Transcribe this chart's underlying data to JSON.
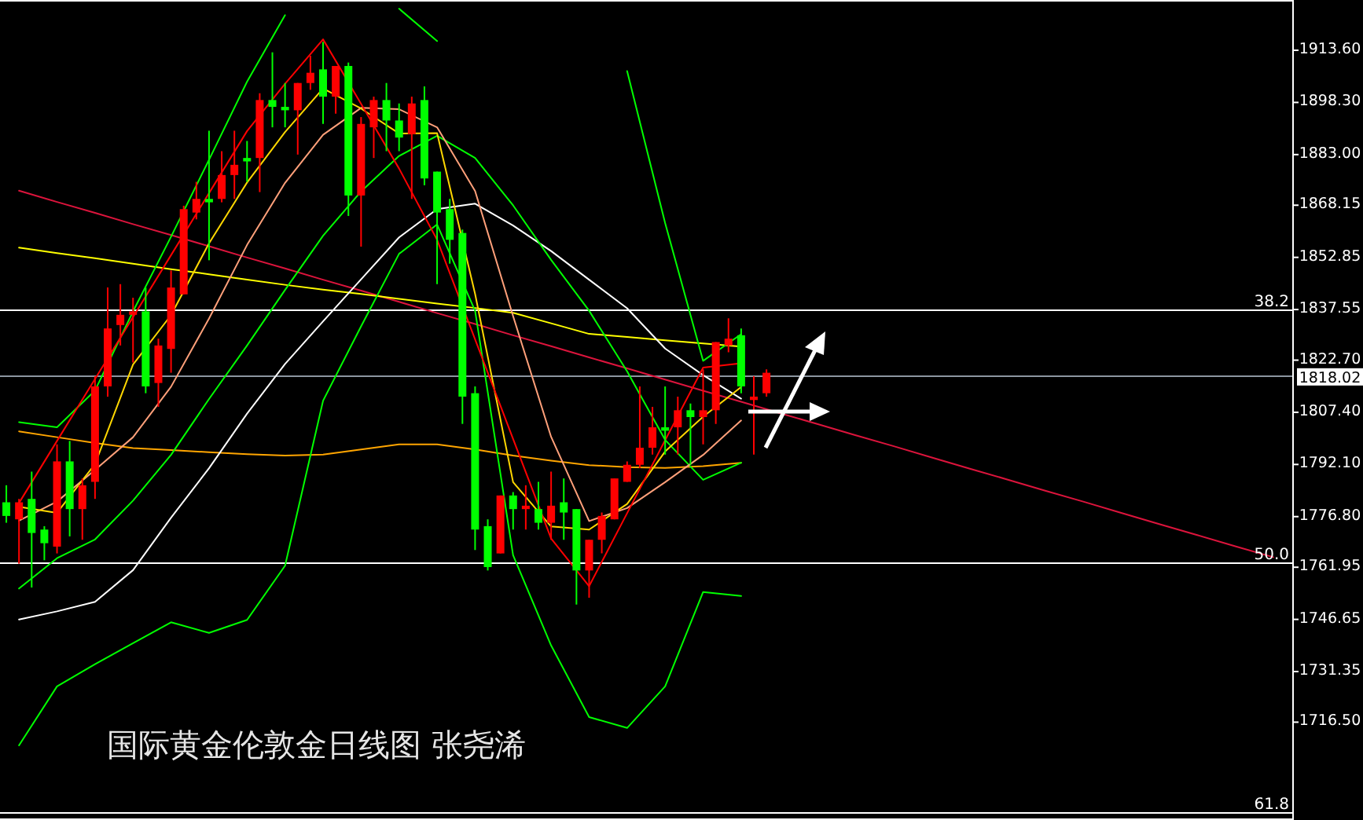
{
  "chart_data": [
    {
      "type": "candlestick",
      "title": "国际黄金伦敦金日线图 张尧浠",
      "categories": [
        null,
        null,
        null,
        null,
        null,
        null,
        null,
        null,
        null,
        null,
        null,
        null,
        null,
        null,
        null,
        null,
        null,
        null,
        null,
        null,
        null,
        null,
        null,
        null,
        null,
        null,
        null,
        null,
        null,
        null,
        null,
        null,
        null,
        null,
        null,
        null,
        null,
        null,
        null,
        null,
        null,
        null,
        null,
        null,
        null,
        null,
        null,
        null,
        null,
        null,
        null,
        null,
        null,
        null,
        null,
        null,
        null,
        null,
        null,
        null,
        null
      ],
      "ohlc": [
        [
          1781,
          1786,
          1775,
          1777
        ],
        [
          1776,
          1782,
          1763,
          1781
        ],
        [
          1782,
          1790,
          1756,
          1772
        ],
        [
          1773,
          1774,
          1764,
          1769
        ],
        [
          1768,
          1798,
          1766,
          1793
        ],
        [
          1793,
          1799,
          1771,
          1779
        ],
        [
          1779,
          1788,
          1770,
          1786
        ],
        [
          1787,
          1818,
          1782,
          1815
        ],
        [
          1815,
          1844,
          1812,
          1832
        ],
        [
          1833,
          1845,
          1827,
          1836
        ],
        [
          1836,
          1841,
          1822,
          1837
        ],
        [
          1837,
          1844,
          1813,
          1815
        ],
        [
          1816,
          1829,
          1809,
          1827
        ],
        [
          1826,
          1849,
          1819,
          1844
        ],
        [
          1842,
          1868,
          1842,
          1867
        ],
        [
          1866,
          1875,
          1864,
          1870
        ],
        [
          1870,
          1890,
          1852,
          1869
        ],
        [
          1870,
          1884,
          1869,
          1877
        ],
        [
          1877,
          1890,
          1870,
          1880
        ],
        [
          1882,
          1887,
          1875,
          1881
        ],
        [
          1882,
          1901,
          1872,
          1899
        ],
        [
          1899,
          1913,
          1891,
          1897
        ],
        [
          1897,
          1904,
          1891,
          1896
        ],
        [
          1896,
          1904,
          1883,
          1904
        ],
        [
          1904,
          1912,
          1902,
          1907
        ],
        [
          1908,
          1916,
          1892,
          1900
        ],
        [
          1900,
          1909,
          1895,
          1909
        ],
        [
          1909,
          1910,
          1865,
          1871
        ],
        [
          1871,
          1894,
          1856,
          1892
        ],
        [
          1891,
          1900,
          1882,
          1899
        ],
        [
          1899,
          1904,
          1884,
          1893
        ],
        [
          1893,
          1898,
          1884,
          1888
        ],
        [
          1889,
          1900,
          1870,
          1898
        ],
        [
          1899,
          1903,
          1874,
          1876
        ],
        [
          1878,
          1878,
          1845,
          1866
        ],
        [
          1867,
          1870,
          1851,
          1858
        ],
        [
          1860,
          1861,
          1804,
          1812
        ],
        [
          1813,
          1815,
          1767,
          1773
        ],
        [
          1774,
          1776,
          1761,
          1762
        ],
        [
          1766,
          1783,
          1766,
          1783
        ],
        [
          1783,
          1784,
          1773,
          1779
        ],
        [
          1779,
          1786,
          1773,
          1780
        ],
        [
          1779,
          1787,
          1773,
          1775
        ],
        [
          1775,
          1790,
          1770,
          1780
        ],
        [
          1781,
          1788,
          1770,
          1778
        ],
        [
          1779,
          1779,
          1751,
          1761
        ],
        [
          1761,
          1770,
          1753,
          1770
        ],
        [
          1770,
          1778,
          1766,
          1777
        ],
        [
          1776,
          1788,
          1776,
          1788
        ],
        [
          1787,
          1793,
          1787,
          1792
        ],
        [
          1792,
          1815,
          1791,
          1797
        ],
        [
          1797,
          1809,
          1795,
          1803
        ],
        [
          1803,
          1815,
          1795,
          1802
        ],
        [
          1803,
          1812,
          1795,
          1808
        ],
        [
          1808,
          1810,
          1792,
          1806
        ],
        [
          1806,
          1820,
          1798,
          1808
        ],
        [
          1808,
          1828,
          1804,
          1828
        ],
        [
          1827,
          1835,
          1825,
          1829
        ],
        [
          1830,
          1832,
          1813,
          1815
        ],
        [
          1811,
          1818,
          1795,
          1812
        ],
        [
          1813,
          1820,
          1812,
          1819
        ]
      ],
      "ylim": [
        1687.8,
        1928.35
      ],
      "tick_labels": false
    },
    {
      "type": "line",
      "categories": [
        null,
        null,
        null,
        null,
        null,
        null,
        null,
        null,
        null,
        null,
        null,
        null,
        null,
        null,
        null,
        null,
        null,
        null,
        null,
        null,
        null,
        null,
        null,
        null,
        null,
        null,
        null,
        null,
        null,
        null,
        null,
        null,
        null,
        null
      ],
      "ylim": [
        1687.8,
        1928.35
      ],
      "yticks": [
        {
          "value": 1913.6,
          "label": "1913.60"
        },
        {
          "value": 1898.3,
          "label": "1898.30"
        },
        {
          "value": 1883.0,
          "label": "1883.00"
        },
        {
          "value": 1868.15,
          "label": "1868.15"
        },
        {
          "value": 1852.85,
          "label": "1852.85"
        },
        {
          "value": 1837.55,
          "label": "1837.55"
        },
        {
          "value": 1822.7,
          "label": "1822.70"
        },
        {
          "value": 1807.4,
          "label": "1807.40"
        },
        {
          "value": 1792.1,
          "label": "1792.10"
        },
        {
          "value": 1776.8,
          "label": "1776.80"
        },
        {
          "value": 1761.95,
          "label": "1761.95"
        },
        {
          "value": 1746.65,
          "label": "1746.65"
        },
        {
          "value": 1731.35,
          "label": "1731.35"
        },
        {
          "value": 1716.5,
          "label": "1716.50"
        }
      ],
      "tick_labels": "y",
      "ref_lines": [
        {
          "axis": "y",
          "value": 1837.6,
          "color": "#ffffff"
        },
        {
          "axis": "y",
          "value": 1763.4,
          "color": "#ffffff"
        },
        {
          "axis": "y",
          "value": 1690.1,
          "color": "#ffffff"
        },
        {
          "axis": "y",
          "value": 1818.02,
          "label": "1818.02",
          "color": "#8c96a0"
        }
      ],
      "annotations": [
        {
          "text": "38.2",
          "y": 1837.6
        },
        {
          "text": "50.0",
          "y": 1763.4
        },
        {
          "text": "61.8",
          "y": 1690.1
        }
      ],
      "series": [
        {
          "color": "#dc143c",
          "values": [
            1872.4,
            1869.1,
            1865.9,
            1862.6,
            1859.4,
            1856.1,
            1852.8,
            1849.6,
            1846.3,
            1843.1,
            1839.8,
            1836.5,
            1833.3,
            1830.0,
            1826.8,
            1823.5,
            1820.3,
            1817.0,
            1813.7,
            1810.5,
            1807.2,
            1804.0,
            1800.7,
            1797.5,
            1794.2,
            1790.9,
            1787.7,
            1784.4,
            1781.2,
            1777.9,
            1774.6,
            1771.4,
            1768.1,
            1764.9
          ]
        },
        {
          "color": "#ffff00",
          "values": [
            1855.7,
            1854.1,
            1852.6,
            1851.0,
            1849.4,
            1847.9,
            1846.3,
            1844.8,
            1843.4,
            1842.1,
            1840.7,
            1839.3,
            1838.0,
            1836.6,
            1833.5,
            1830.4,
            1829.5,
            1828.5,
            1827.6,
            1826.7,
            null,
            null,
            null,
            null,
            null,
            null,
            null,
            null,
            null,
            null,
            null,
            null,
            null,
            null
          ]
        },
        {
          "color": "#ffa500",
          "values": [
            1801.8,
            1800.1,
            1798.4,
            1796.9,
            1796.3,
            1795.7,
            1795.1,
            1794.7,
            1795.0,
            1796.5,
            1798.0,
            1798.0,
            1796.5,
            1794.7,
            1793.2,
            1791.9,
            1791.3,
            1791.1,
            1791.6,
            1792.6,
            null,
            null,
            null,
            null,
            null,
            null,
            null,
            null,
            null,
            null,
            null,
            null,
            null,
            null
          ]
        },
        {
          "color": "#ffffff",
          "values": [
            1746.6,
            1749.0,
            1751.8,
            1761.1,
            1776.5,
            1791.0,
            1807.0,
            1821.6,
            1834.1,
            1846.4,
            1858.7,
            1867.0,
            1868.6,
            1862.2,
            1854.7,
            1846.3,
            1837.9,
            1826.1,
            1818.3,
            1811.4,
            null,
            null,
            null,
            null,
            null,
            null,
            null,
            null,
            null,
            null,
            null,
            null,
            null,
            null
          ]
        },
        {
          "color": "#00ff00",
          "values": [
            1804.5,
            1803.0,
            1813.8,
            1837.0,
            1858.9,
            1881.5,
            1904.4,
            1923.9,
            null,
            null,
            1925.8,
            1916.3,
            null,
            null,
            null,
            null,
            1907.5,
            1862.9,
            1822.5,
            1830.3,
            null,
            null,
            null,
            null,
            null,
            null,
            null,
            null,
            null,
            null,
            null,
            null,
            null,
            null
          ]
        },
        {
          "color": "#00ff00",
          "values": [
            1755.7,
            1764.6,
            1770.1,
            1781.5,
            1794.9,
            1811.3,
            1827.0,
            1843.3,
            1859.2,
            1872.2,
            1882.6,
            1888.5,
            1882.0,
            1868.1,
            1852.1,
            1837.2,
            1819.4,
            1799.3,
            1787.6,
            1792.6,
            null,
            null,
            null,
            null,
            null,
            null,
            null,
            null,
            null,
            null,
            null,
            null,
            null,
            null
          ]
        },
        {
          "color": "#00ff00",
          "values": [
            1709.7,
            1727.0,
            1733.5,
            1739.7,
            1745.8,
            1742.7,
            1746.5,
            1762.4,
            1810.8,
            1832.6,
            1853.9,
            1862.5,
            1837.2,
            1765.5,
            1739.0,
            1718.0,
            1714.8,
            1727.0,
            1754.7,
            1753.5,
            null,
            null,
            null,
            null,
            null,
            null,
            null,
            null,
            null,
            null,
            null,
            null,
            null,
            null
          ]
        },
        {
          "color": "#ffa07a",
          "values": [
            1775.6,
            1781.2,
            1790.5,
            1800.1,
            1814.9,
            1834.9,
            1856.5,
            1874.7,
            1888.8,
            1896.7,
            1896.3,
            1891.0,
            1872.3,
            1835.6,
            1800.2,
            1775.5,
            1779.3,
            1786.9,
            1794.9,
            1805.0,
            null,
            null,
            null,
            null,
            null,
            null,
            null,
            null,
            null,
            null,
            null,
            null,
            null,
            null
          ]
        },
        {
          "color": "#ffd700",
          "values": [
            1779.7,
            1777.9,
            1792.2,
            1821.4,
            1835.9,
            1857.0,
            1874.8,
            1889.6,
            1902.4,
            1896.5,
            1889.2,
            1889.3,
            1842.1,
            1786.9,
            1773.9,
            1773.0,
            1780.5,
            1795.9,
            1806.1,
            1814.8,
            null,
            null,
            null,
            null,
            null,
            null,
            null,
            null,
            null,
            null,
            null,
            null,
            null,
            null
          ]
        },
        {
          "color": "#ff0000",
          "values": [
            1780.8,
            1799.0,
            1817.2,
            1835.3,
            1853.5,
            1871.7,
            1889.9,
            1903.8,
            1916.8,
            1897.9,
            1878.9,
            1858.0,
            1828.8,
            1799.6,
            1770.4,
            1756.4,
            1777.8,
            1799.2,
            1820.5,
            1821.8,
            null,
            null,
            null,
            null,
            null,
            null,
            null,
            null,
            null,
            null,
            null,
            null,
            null,
            null
          ]
        }
      ]
    }
  ]
}
